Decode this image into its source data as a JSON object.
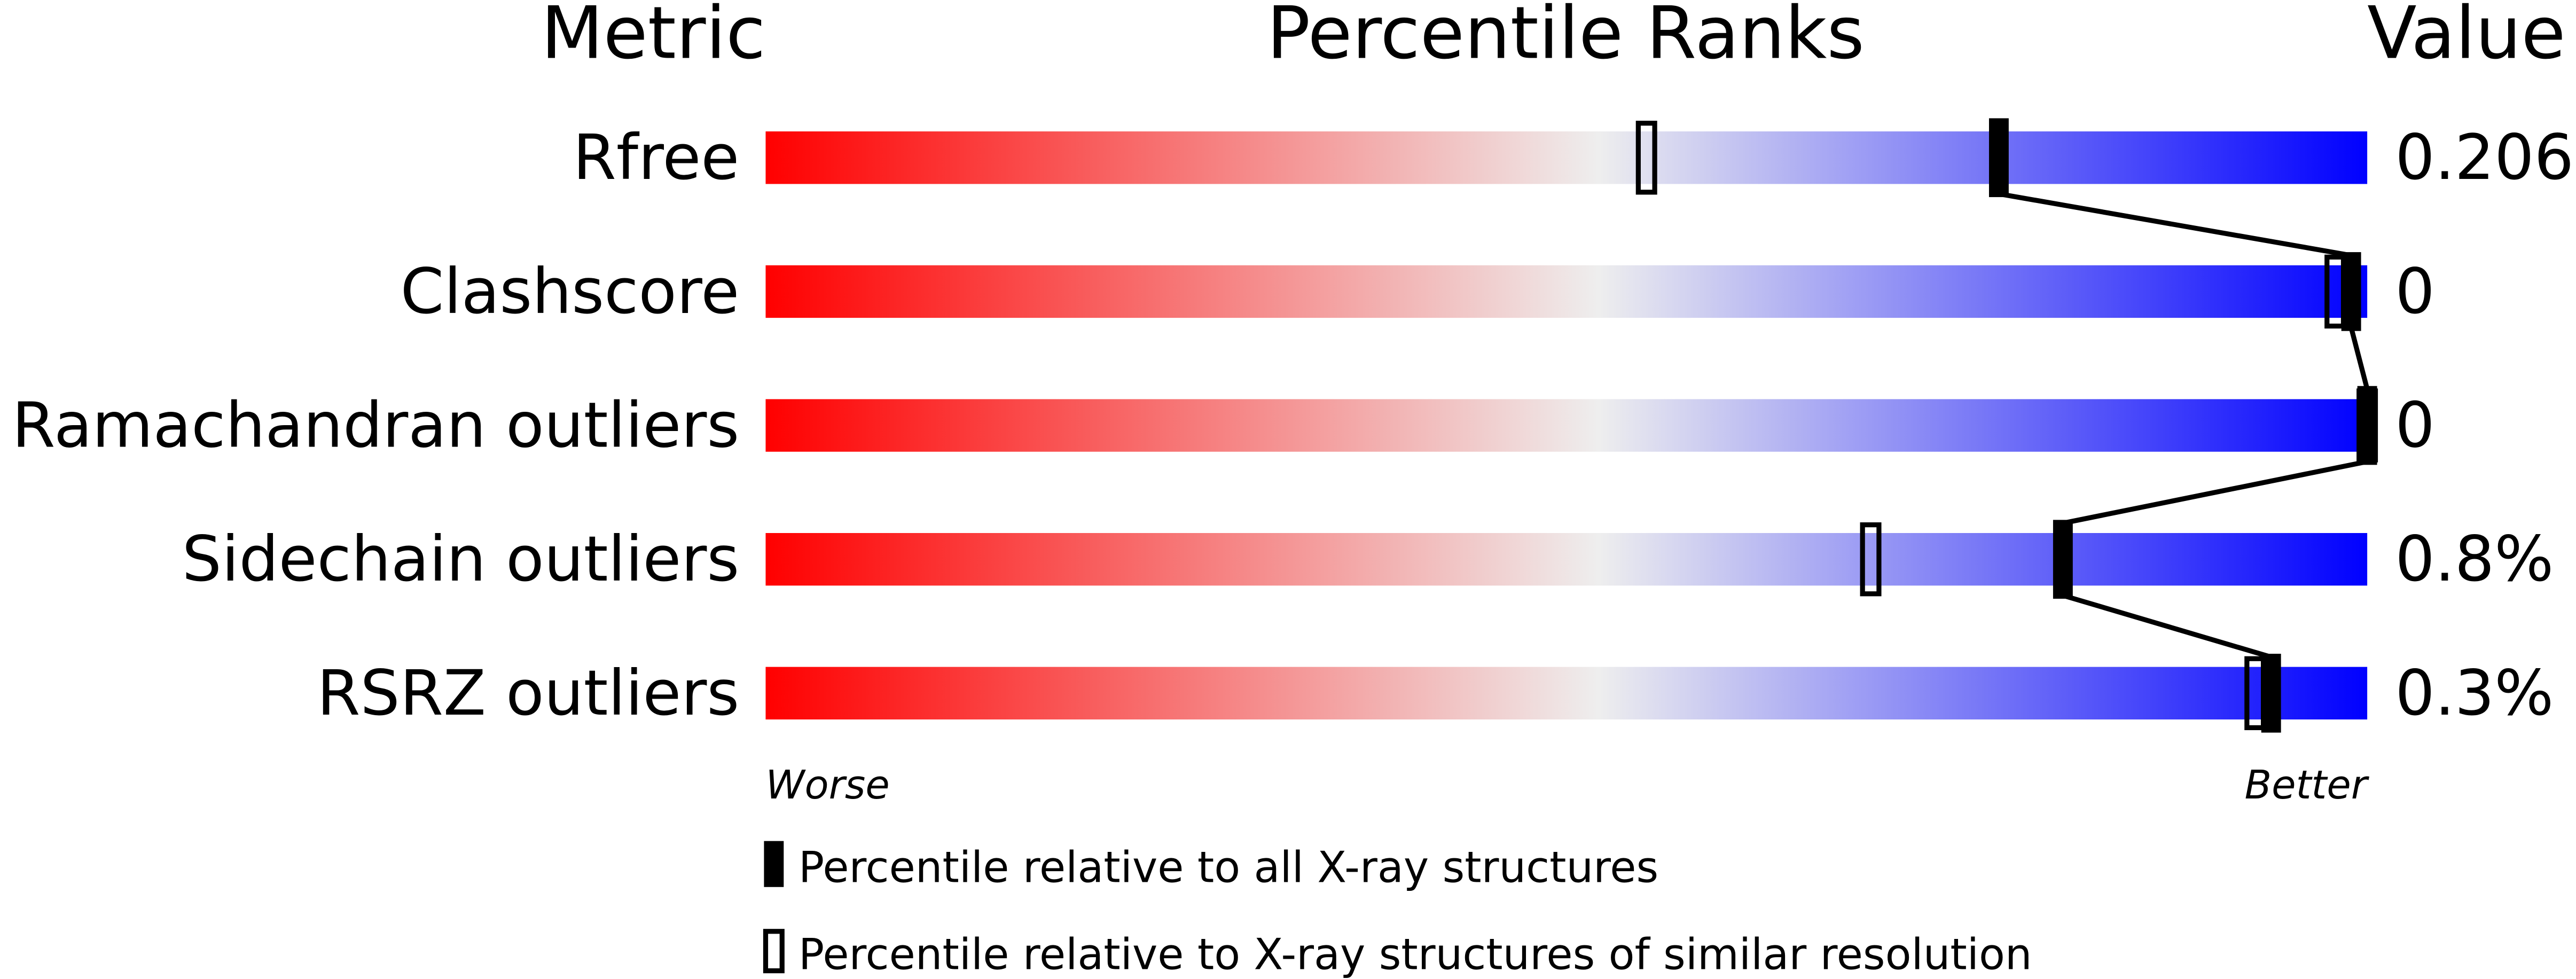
{
  "chart_data": {
    "type": "percentile-slider",
    "headers": {
      "metric": "Metric",
      "ranks": "Percentile Ranks",
      "value": "Value"
    },
    "categories": [
      "Rfree",
      "Clashscore",
      "Ramachandran outliers",
      "Sidechain outliers",
      "RSRZ outliers"
    ],
    "metric_values": [
      0.206,
      0,
      0,
      0.8,
      0.3
    ],
    "metric_value_labels": [
      "0.206",
      "0",
      "0",
      "0.8%",
      "0.3%"
    ],
    "series": [
      {
        "name": "Percentile relative to all X-ray structures",
        "style": "filled",
        "color": "#000000",
        "values": [
          77,
          99,
          100,
          81,
          94
        ]
      },
      {
        "name": "Percentile relative to X-ray structures of similar resolution",
        "style": "open",
        "color": "#000000",
        "values": [
          55,
          98,
          100,
          69,
          93
        ]
      }
    ],
    "xlim": [
      0,
      100
    ],
    "gradient": [
      "#ff0000",
      "#eeeeee",
      "#0000ff"
    ],
    "worse_label": "Worse",
    "better_label": "Better"
  }
}
